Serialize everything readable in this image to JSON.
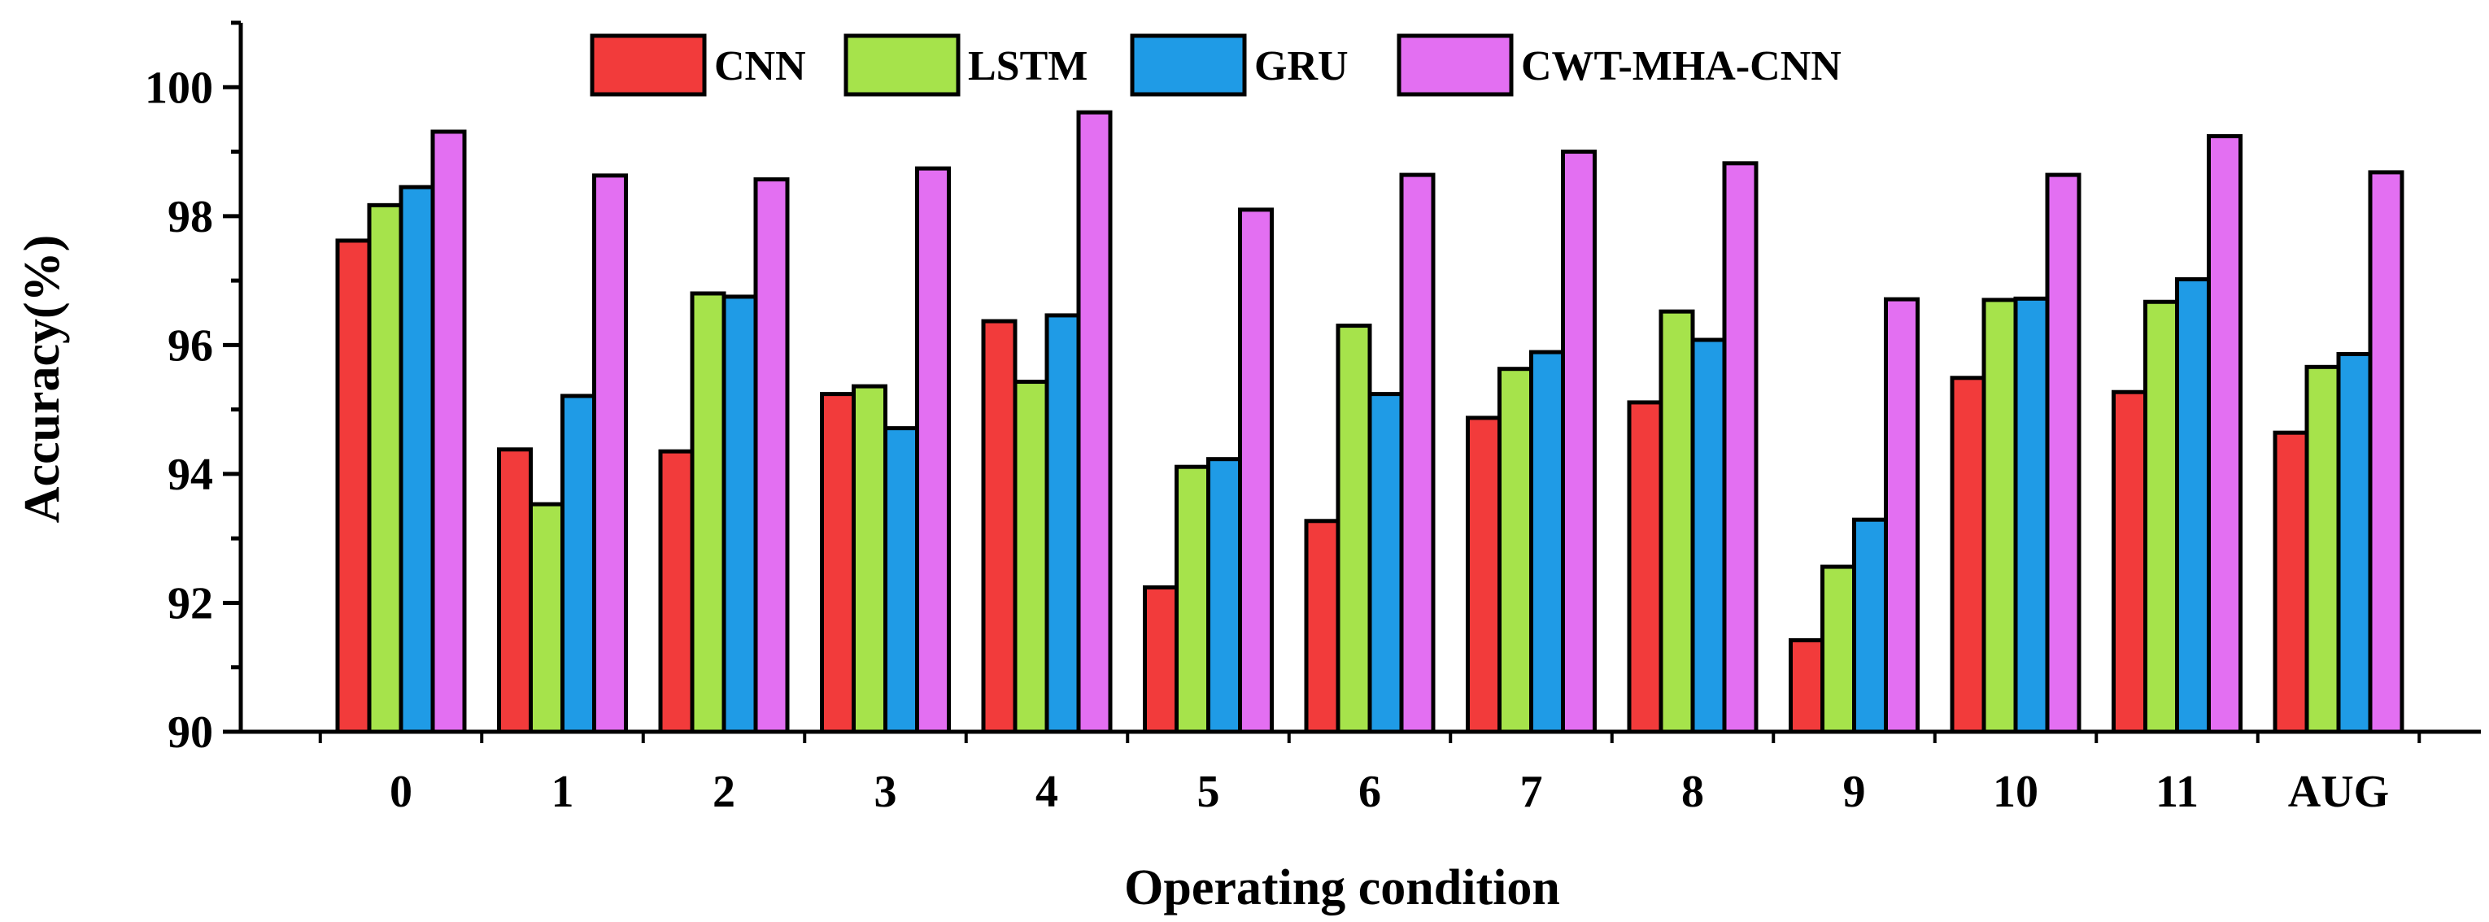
{
  "chart_data": {
    "type": "bar",
    "title": "",
    "xlabel": "Operating condition",
    "ylabel": "Accuracy(%)",
    "ylim": [
      90,
      101
    ],
    "yticks": [
      90,
      92,
      94,
      96,
      98,
      100
    ],
    "yminor_step": 1,
    "categories": [
      "0",
      "1",
      "2",
      "3",
      "4",
      "5",
      "6",
      "7",
      "8",
      "9",
      "10",
      "11",
      "AUG"
    ],
    "series": [
      {
        "name": "CNN",
        "color": "#f23b3b",
        "values": [
          97.62,
          94.38,
          94.35,
          95.24,
          96.37,
          92.24,
          93.27,
          94.87,
          95.11,
          91.42,
          95.49,
          95.27,
          94.64
        ]
      },
      {
        "name": "LSTM",
        "color": "#a6e34b",
        "values": [
          98.17,
          93.53,
          96.8,
          95.36,
          95.43,
          94.11,
          96.3,
          95.63,
          96.52,
          92.56,
          96.7,
          96.67,
          95.66
        ]
      },
      {
        "name": "GRU",
        "color": "#1f9be6",
        "values": [
          98.45,
          95.21,
          96.75,
          94.71,
          96.46,
          94.23,
          95.24,
          95.89,
          96.08,
          93.29,
          96.72,
          97.02,
          95.86
        ]
      },
      {
        "name": "CWT-MHA-CNN",
        "color": "#e36ff2",
        "values": [
          99.31,
          98.63,
          98.57,
          98.74,
          99.61,
          98.1,
          98.64,
          99.0,
          98.82,
          96.71,
          98.64,
          99.24,
          98.68
        ]
      }
    ],
    "legend_position": "top",
    "grid": false
  }
}
